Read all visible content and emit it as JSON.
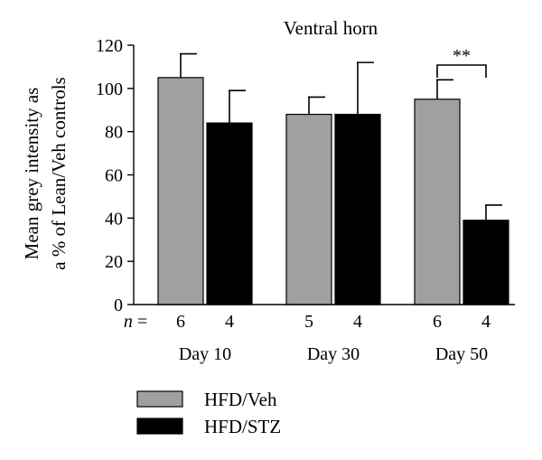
{
  "chart_data": {
    "type": "bar",
    "title": "Ventral horn",
    "ylabel_lines": [
      "Mean grey intensity as",
      "a % of Lean/Veh controls"
    ],
    "ylim": [
      0,
      120
    ],
    "yticks": [
      "0",
      "20",
      "40",
      "60",
      "80",
      "100",
      "120"
    ],
    "categories": [
      "Day 10",
      "Day 30",
      "Day 50"
    ],
    "series": [
      {
        "name": "HFD/Veh",
        "color": "#a0a0a0",
        "values": [
          105,
          88,
          95
        ],
        "errors": [
          11,
          8,
          9
        ],
        "n": [
          "6",
          "5",
          "6"
        ]
      },
      {
        "name": "HFD/STZ",
        "color": "#000000",
        "values": [
          84,
          88,
          39
        ],
        "errors": [
          15,
          24,
          7
        ],
        "n": [
          "4",
          "4",
          "4"
        ]
      }
    ],
    "n_prefix": "n",
    "n_equals": " = ",
    "significance": {
      "category": "Day 50",
      "label": "**"
    },
    "legend_position": "bottom-left"
  }
}
